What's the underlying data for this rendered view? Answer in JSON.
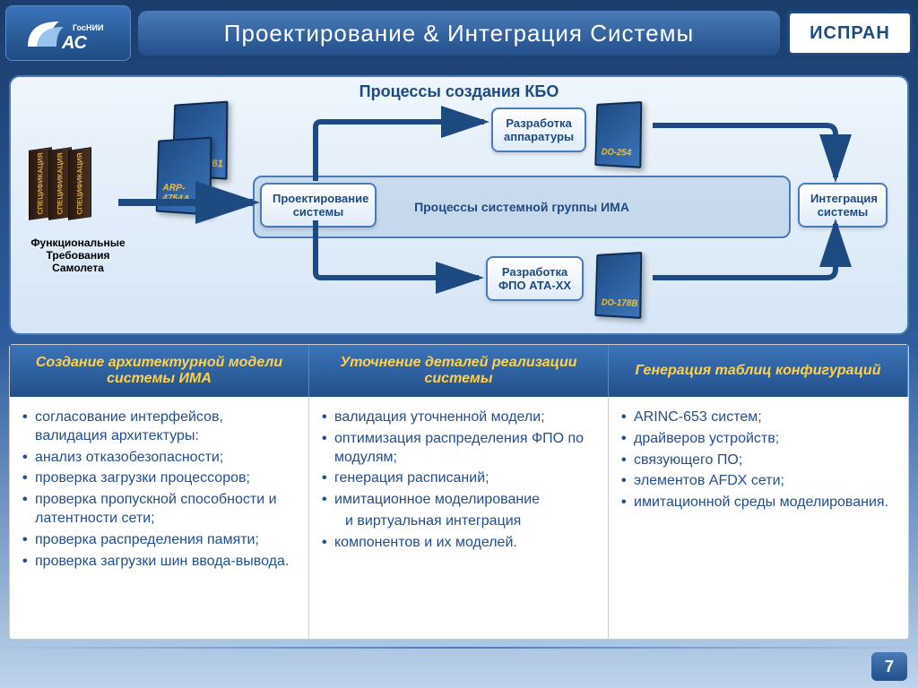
{
  "header": {
    "title": "Проектирование & Интеграция Системы",
    "logo_left_text": "ГосНИИ АС",
    "logo_right_text": "ИСПРАН"
  },
  "diagram": {
    "type": "flowchart",
    "title": "Процессы создания КБО",
    "background_color": "#eef5fc",
    "border_color": "#4a7bb8",
    "arrow_color": "#1e4a82",
    "spec_books": {
      "labels": [
        "СПЕЦИФИКАЦИЯ",
        "СПЕЦИФИКАЦИЯ",
        "СПЕЦИФИКАЦИЯ"
      ],
      "caption": "Функциональные Требования Самолета",
      "book_color": "#3a2818",
      "text_color": "#d4a84a"
    },
    "rulebooks_left": [
      {
        "label": "ARP-4761"
      },
      {
        "label": "ARP-4754A"
      }
    ],
    "inner_region_label": "Процессы системной группы ИМА",
    "nodes": [
      {
        "id": "design",
        "label_l1": "Проектирование",
        "label_l2": "системы"
      },
      {
        "id": "hw",
        "label_l1": "Разработка",
        "label_l2": "аппаратуры",
        "book": "DO-254"
      },
      {
        "id": "sw",
        "label_l1": "Разработка",
        "label_l2": "ФПО АТА-ХХ",
        "book": "DO-178B"
      },
      {
        "id": "integ",
        "label_l1": "Интеграция",
        "label_l2": "системы"
      }
    ],
    "edges": [
      [
        "spec",
        "design"
      ],
      [
        "design",
        "hw"
      ],
      [
        "design",
        "sw"
      ],
      [
        "hw",
        "integ"
      ],
      [
        "sw",
        "integ"
      ]
    ],
    "node_bg": "#ffffff",
    "node_border": "#4a7bb8",
    "node_text_color": "#1e4a82",
    "book_bg": "#1e4a82",
    "book_text": "#f0c040"
  },
  "table": {
    "header_bg": "#2e5d9e",
    "header_text_color": "#ffd24a",
    "body_text_color": "#234f8a",
    "body_fontsize": 16,
    "columns": [
      {
        "title": "Создание архитектурной модели системы ИМА",
        "items": [
          "согласование интерфейсов, валидация архитектуры:",
          "анализ отказобезопасности;",
          "проверка загрузки процессоров;",
          "проверка пропускной способности и латентности сети;",
          "проверка распределения памяти;",
          "проверка загрузки шин ввода-вывода."
        ]
      },
      {
        "title": "Уточнение деталей реализации системы",
        "items": [
          "валидация уточненной модели;",
          "оптимизация распределения ФПО по модулям;",
          "генерация расписаний;",
          "имитационное моделирование",
          "и виртуальная интеграция",
          "компонентов и их моделей."
        ],
        "sub_indices": [
          4
        ]
      },
      {
        "title": "Генерация таблиц конфигураций",
        "items": [
          "ARINC-653 систем;",
          "драйверов устройств;",
          "связующего ПО;",
          "элементов AFDX сети;",
          "имитационной среды моделирования."
        ]
      }
    ]
  },
  "page_number": "7"
}
